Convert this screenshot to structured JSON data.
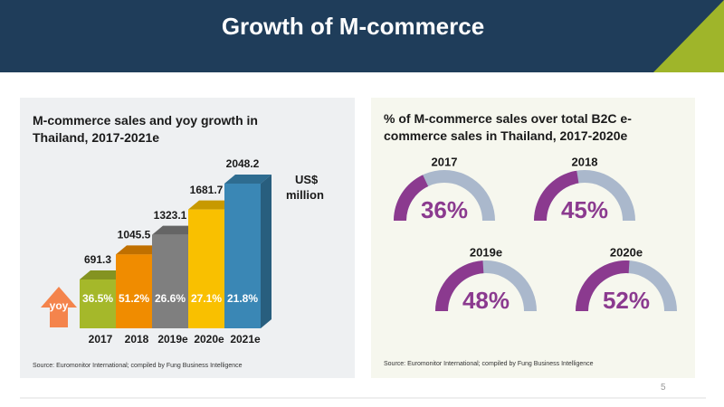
{
  "header": {
    "title": "Growth of M-commerce"
  },
  "page_number": "5",
  "chart_data": [
    {
      "type": "bar3d",
      "title": "M-commerce sales and yoy growth in Thailand, 2017-2021e",
      "categories": [
        "2017",
        "2018",
        "2019e",
        "2020e",
        "2021e"
      ],
      "values": [
        691.3,
        1045.5,
        1323.1,
        1681.7,
        2048.2
      ],
      "colors": [
        "#a5b82a",
        "#f08c00",
        "#7f7f7f",
        "#f9c000",
        "#3a87b5"
      ],
      "unit_label": "US$ million",
      "yoy": {
        "label": "yoy",
        "color": "#f4844c",
        "values": [
          36.5,
          51.2,
          26.6,
          27.1,
          21.8
        ],
        "value_labels": [
          "36.5%",
          "51.2%",
          "26.6%",
          "27.1%",
          "21.8%"
        ]
      },
      "source": "Source: Euromonitor International; compiled by Fung Business Intelligence"
    },
    {
      "type": "gauge",
      "title": "% of M-commerce sales over total B2C e-commerce sales in Thailand, 2017-2020e",
      "categories": [
        "2017",
        "2018",
        "2019e",
        "2020e"
      ],
      "values": [
        36,
        45,
        48,
        52
      ],
      "value_labels": [
        "36%",
        "45%",
        "48%",
        "52%"
      ],
      "color": "#8b3a8f",
      "track_color": "#aab8cc",
      "source": "Source: Euromonitor International; compiled by Fung Business Intelligence"
    }
  ]
}
